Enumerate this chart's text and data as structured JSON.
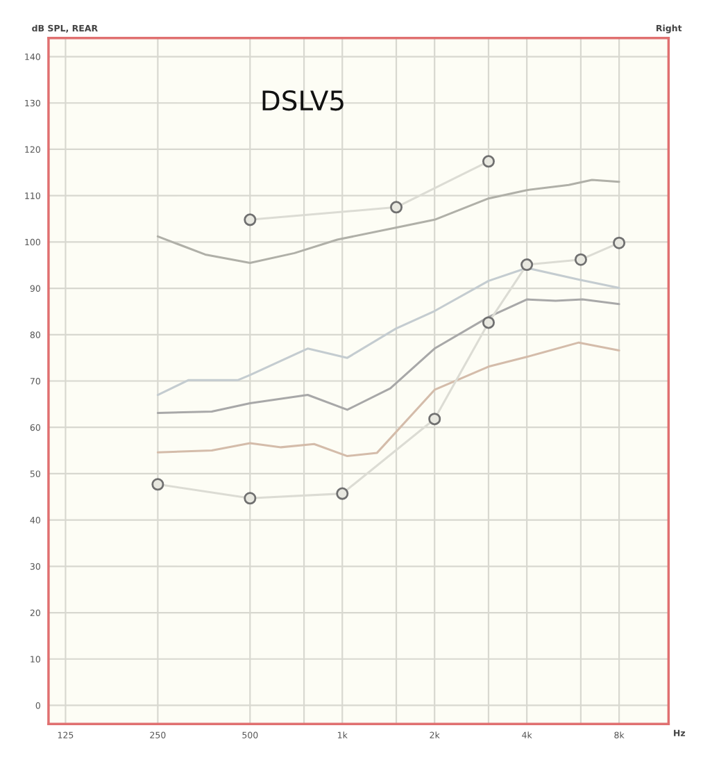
{
  "chart_data": {
    "type": "line",
    "title": "dB SPL, REAR",
    "subtitle": "Right",
    "xlabel": "Hz",
    "annotations": [
      "DSLV5"
    ],
    "log": "x",
    "grid": true,
    "xlim": [
      110,
      11600
    ],
    "ylim": [
      -4,
      144
    ],
    "xticks": [
      125,
      250,
      500,
      {
        "value": 750,
        "label": null
      },
      {
        "value": 1000,
        "label": "1k"
      },
      {
        "value": 1500,
        "label": null
      },
      {
        "value": 2000,
        "label": "2k"
      },
      {
        "value": 3000,
        "label": null
      },
      {
        "value": 4000,
        "label": "4k"
      },
      {
        "value": 6000,
        "label": null
      },
      {
        "value": 8000,
        "label": "8k"
      }
    ],
    "yticks": [
      0,
      10,
      20,
      30,
      40,
      50,
      60,
      70,
      80,
      90,
      100,
      110,
      120,
      130,
      140
    ],
    "series": [
      {
        "color": "#b0b0a8",
        "marker": "none",
        "x": [
          250,
          357,
          500,
          698,
          963,
          1495,
          2000,
          3000,
          4000,
          5480,
          6525,
          8000
        ],
        "values": [
          101.2,
          97.3,
          95.5,
          97.6,
          100.5,
          103.1,
          104.8,
          109.4,
          111.2,
          112.3,
          113.4,
          113
        ]
      },
      {
        "color": "#c4ccd0",
        "marker": "none",
        "x": [
          250,
          315,
          457,
          500,
          771,
          1038,
          1495,
          2000,
          3000,
          4000,
          5910,
          8000
        ],
        "values": [
          67,
          70.2,
          70.2,
          71.3,
          77,
          75,
          81.3,
          85.1,
          91.6,
          94.4,
          91.9,
          90.1
        ]
      },
      {
        "color": "#a8a8a8",
        "marker": "none",
        "x": [
          250,
          375,
          500,
          771,
          1038,
          1434,
          2000,
          3000,
          4000,
          4965,
          6080,
          8000
        ],
        "values": [
          63.1,
          63.4,
          65.2,
          67,
          63.8,
          68.4,
          77,
          83.8,
          87.6,
          87.3,
          87.6,
          86.6
        ]
      },
      {
        "color": "#d4bcaa",
        "marker": "none",
        "x": [
          250,
          375,
          500,
          631,
          809,
          1038,
          1298,
          2000,
          3000,
          4000,
          5910,
          8000
        ],
        "values": [
          54.6,
          55,
          56.6,
          55.7,
          56.4,
          53.8,
          54.5,
          68.1,
          73.1,
          75.2,
          78.3,
          76.6
        ]
      },
      {
        "color": "#dcdcd4",
        "marker": "circle",
        "x": [
          500,
          1500,
          3000
        ],
        "values": [
          104.8,
          107.5,
          117.4
        ]
      },
      {
        "color": "#dcdcd4",
        "marker": "circle",
        "x": [
          250,
          500,
          1000,
          2000,
          3000,
          4000,
          6000,
          8000
        ],
        "values": [
          47.7,
          44.7,
          45.7,
          61.8,
          82.6,
          95.1,
          96.2,
          99.8
        ]
      }
    ]
  }
}
